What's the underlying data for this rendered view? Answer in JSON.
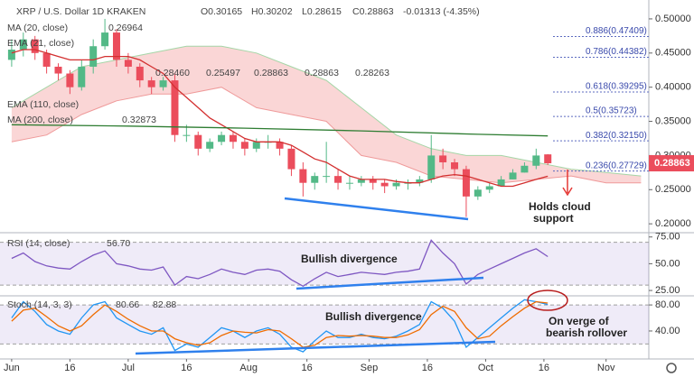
{
  "chart_data": [
    {
      "type": "candlestick",
      "title": "XRP / U.S. Dollar  1D  KRAKEN",
      "ohlc_labels": [
        "O0.30165",
        "H0.30202",
        "L0.28615",
        "C0.28863",
        "-0.01313 (-4.35%)"
      ],
      "xlim": [
        -3,
        164
      ],
      "ylim": [
        0.187,
        0.525
      ],
      "yticks": [
        {
          "value": 0.5,
          "label": "0.50000"
        },
        {
          "value": 0.45,
          "label": "0.45000"
        },
        {
          "value": 0.4,
          "label": "0.40000"
        },
        {
          "value": 0.35,
          "label": "0.35000"
        },
        {
          "value": 0.3,
          "label": "0.30000"
        },
        {
          "value": 0.25,
          "label": "0.25000"
        },
        {
          "value": 0.2,
          "label": "0.20000"
        }
      ],
      "x": [
        0,
        3,
        6,
        9,
        12,
        15,
        18,
        21,
        24,
        27,
        30,
        33,
        36,
        39,
        42,
        45,
        48,
        51,
        54,
        57,
        60,
        63,
        66,
        69,
        72,
        75,
        78,
        81,
        84,
        87,
        90,
        93,
        96,
        99,
        102,
        105,
        108,
        111,
        114,
        117,
        120,
        123,
        126,
        129,
        132,
        135,
        138
      ],
      "open": [
        0.44,
        0.455,
        0.47,
        0.45,
        0.43,
        0.42,
        0.4,
        0.43,
        0.46,
        0.48,
        0.44,
        0.43,
        0.41,
        0.4,
        0.41,
        0.33,
        0.33,
        0.31,
        0.32,
        0.33,
        0.32,
        0.31,
        0.32,
        0.32,
        0.31,
        0.28,
        0.26,
        0.27,
        0.27,
        0.26,
        0.26,
        0.265,
        0.26,
        0.255,
        0.26,
        0.26,
        0.265,
        0.3,
        0.29,
        0.28,
        0.24,
        0.25,
        0.255,
        0.265,
        0.275,
        0.285,
        0.30165
      ],
      "high": [
        0.47,
        0.48,
        0.475,
        0.455,
        0.435,
        0.425,
        0.44,
        0.47,
        0.5,
        0.485,
        0.45,
        0.435,
        0.415,
        0.415,
        0.42,
        0.345,
        0.335,
        0.325,
        0.335,
        0.335,
        0.325,
        0.325,
        0.33,
        0.325,
        0.315,
        0.29,
        0.275,
        0.32,
        0.28,
        0.27,
        0.27,
        0.27,
        0.265,
        0.265,
        0.265,
        0.27,
        0.33,
        0.31,
        0.295,
        0.285,
        0.255,
        0.26,
        0.27,
        0.28,
        0.29,
        0.31,
        0.30202
      ],
      "low": [
        0.43,
        0.445,
        0.44,
        0.42,
        0.41,
        0.39,
        0.395,
        0.42,
        0.455,
        0.43,
        0.42,
        0.4,
        0.39,
        0.395,
        0.32,
        0.32,
        0.3,
        0.305,
        0.315,
        0.31,
        0.3,
        0.305,
        0.31,
        0.3,
        0.27,
        0.24,
        0.25,
        0.26,
        0.25,
        0.25,
        0.255,
        0.25,
        0.245,
        0.25,
        0.25,
        0.255,
        0.26,
        0.28,
        0.27,
        0.21,
        0.235,
        0.245,
        0.255,
        0.265,
        0.275,
        0.28,
        0.28615
      ],
      "close": [
        0.455,
        0.47,
        0.45,
        0.43,
        0.42,
        0.4,
        0.43,
        0.46,
        0.48,
        0.44,
        0.43,
        0.41,
        0.4,
        0.41,
        0.33,
        0.33,
        0.31,
        0.32,
        0.33,
        0.32,
        0.31,
        0.32,
        0.32,
        0.31,
        0.28,
        0.26,
        0.27,
        0.27,
        0.26,
        0.26,
        0.265,
        0.26,
        0.255,
        0.26,
        0.26,
        0.265,
        0.3,
        0.29,
        0.28,
        0.24,
        0.25,
        0.255,
        0.265,
        0.275,
        0.285,
        0.3,
        0.28863
      ],
      "up_color": "#53b987",
      "down_color": "#eb4d5c",
      "last_price": {
        "value": 0.28863,
        "label": "0.28863"
      },
      "cloud": {
        "x": [
          0,
          9,
          18,
          27,
          36,
          45,
          54,
          63,
          72,
          81,
          90,
          99,
          108,
          117,
          126,
          135,
          144,
          153,
          162
        ],
        "top": [
          0.37,
          0.4,
          0.43,
          0.44,
          0.45,
          0.46,
          0.46,
          0.45,
          0.43,
          0.41,
          0.37,
          0.33,
          0.31,
          0.3,
          0.3,
          0.29,
          0.28,
          0.275,
          0.27
        ],
        "bottom": [
          0.32,
          0.33,
          0.36,
          0.38,
          0.39,
          0.39,
          0.4,
          0.37,
          0.36,
          0.35,
          0.3,
          0.29,
          0.27,
          0.265,
          0.26,
          0.265,
          0.27,
          0.26,
          0.26
        ],
        "color": "#f5b5b5",
        "labels": [
          "0.28460",
          "0.25497",
          "0.28863",
          "0.28863",
          "0.28263"
        ]
      },
      "series": [
        {
          "name": "MA (20, close)",
          "color": "#d32f2f",
          "last_label": "0.26964",
          "x": [
            0,
            3,
            6,
            9,
            12,
            15,
            18,
            21,
            24,
            27,
            30,
            33,
            36,
            39,
            42,
            45,
            48,
            51,
            54,
            57,
            60,
            63,
            66,
            69,
            72,
            75,
            78,
            81,
            84,
            87,
            90,
            93,
            96,
            99,
            102,
            105,
            108,
            111,
            114,
            117,
            120,
            123,
            126,
            129,
            132,
            135,
            138
          ],
          "values": [
            0.45,
            0.455,
            0.455,
            0.45,
            0.445,
            0.44,
            0.44,
            0.44,
            0.445,
            0.445,
            0.445,
            0.44,
            0.43,
            0.42,
            0.4,
            0.385,
            0.37,
            0.355,
            0.345,
            0.335,
            0.325,
            0.32,
            0.32,
            0.32,
            0.315,
            0.305,
            0.295,
            0.29,
            0.28,
            0.27,
            0.265,
            0.265,
            0.265,
            0.262,
            0.26,
            0.26,
            0.265,
            0.27,
            0.272,
            0.27,
            0.265,
            0.26,
            0.255,
            0.255,
            0.26,
            0.265,
            0.26964
          ]
        },
        {
          "name": "MA (200, close)",
          "color": "#2e7d32",
          "last_label": "0.32873",
          "x": [
            0,
            30,
            60,
            90,
            120,
            138
          ],
          "values": [
            0.345,
            0.343,
            0.34,
            0.336,
            0.331,
            0.32873
          ]
        }
      ],
      "legend_rows": [
        "EMA (21, close)",
        "EMA (110, close)"
      ],
      "fib": [
        {
          "value": 0.47409,
          "label": "0.886(0.47409)"
        },
        {
          "value": 0.44382,
          "label": "0.786(0.44382)"
        },
        {
          "value": 0.39295,
          "label": "0.618(0.39295)"
        },
        {
          "value": 0.35723,
          "label": "0.5(0.35723)"
        },
        {
          "value": 0.3215,
          "label": "0.382(0.32150)"
        },
        {
          "value": 0.27729,
          "label": "0.236(0.27729)"
        }
      ],
      "annotations": [
        "Holds cloud",
        "support"
      ]
    },
    {
      "type": "line",
      "title": "RSI (14, close)",
      "xlim": [
        -3,
        164
      ],
      "ylim": [
        20,
        79
      ],
      "yticks": [
        {
          "value": 75,
          "label": "75.00"
        },
        {
          "value": 50,
          "label": "50.00"
        },
        {
          "value": 25,
          "label": "25.00"
        }
      ],
      "band": [
        30,
        70
      ],
      "band_color": "#7e57c2",
      "x": [
        0,
        3,
        6,
        9,
        12,
        15,
        18,
        21,
        24,
        27,
        30,
        33,
        36,
        39,
        42,
        45,
        48,
        51,
        54,
        57,
        60,
        63,
        66,
        69,
        72,
        75,
        78,
        81,
        84,
        87,
        90,
        93,
        96,
        99,
        102,
        105,
        108,
        111,
        114,
        117,
        120,
        123,
        126,
        129,
        132,
        135,
        138
      ],
      "series": [
        {
          "color": "#7e57c2",
          "last_label": "56.70",
          "values": [
            55,
            60,
            52,
            48,
            46,
            45,
            52,
            58,
            62,
            50,
            48,
            45,
            44,
            47,
            30,
            38,
            36,
            40,
            45,
            42,
            40,
            44,
            45,
            43,
            35,
            29,
            36,
            42,
            38,
            40,
            42,
            41,
            40,
            42,
            43,
            45,
            72,
            60,
            50,
            31,
            40,
            45,
            50,
            55,
            60,
            64,
            56.7
          ]
        }
      ],
      "annotations": [
        "Bullish divergence"
      ]
    },
    {
      "type": "line",
      "title": "Stoch (14, 3, 3)",
      "xlim": [
        -3,
        164
      ],
      "ylim": [
        -3,
        94
      ],
      "yticks": [
        {
          "value": 80,
          "label": "80.00"
        },
        {
          "value": 40,
          "label": "40.00"
        }
      ],
      "band": [
        20,
        80
      ],
      "band_color": "#7e57c2",
      "x": [
        0,
        3,
        6,
        9,
        12,
        15,
        18,
        21,
        24,
        27,
        30,
        33,
        36,
        39,
        42,
        45,
        48,
        51,
        54,
        57,
        60,
        63,
        66,
        69,
        72,
        75,
        78,
        81,
        84,
        87,
        90,
        93,
        96,
        99,
        102,
        105,
        108,
        111,
        114,
        117,
        120,
        123,
        126,
        129,
        132,
        135,
        138
      ],
      "series": [
        {
          "color": "#2196f3",
          "last_label": "80.66",
          "values": [
            60,
            85,
            70,
            50,
            40,
            35,
            60,
            80,
            85,
            60,
            50,
            40,
            35,
            45,
            10,
            20,
            15,
            30,
            45,
            40,
            30,
            40,
            45,
            35,
            15,
            8,
            25,
            40,
            30,
            30,
            35,
            30,
            28,
            32,
            40,
            50,
            85,
            75,
            55,
            15,
            30,
            45,
            60,
            75,
            88,
            85,
            80.66
          ]
        },
        {
          "color": "#ef6c00",
          "last_label": "82.88",
          "values": [
            55,
            72,
            75,
            62,
            48,
            40,
            48,
            65,
            80,
            70,
            58,
            48,
            40,
            40,
            28,
            22,
            18,
            22,
            33,
            40,
            38,
            37,
            42,
            40,
            28,
            15,
            18,
            30,
            33,
            32,
            33,
            32,
            30,
            30,
            34,
            42,
            65,
            78,
            70,
            45,
            28,
            32,
            48,
            62,
            75,
            85,
            82.88
          ]
        }
      ],
      "xticks": [
        {
          "value": 0,
          "label": "Jun"
        },
        {
          "value": 15,
          "label": "16"
        },
        {
          "value": 30,
          "label": "Jul"
        },
        {
          "value": 45,
          "label": "16"
        },
        {
          "value": 61,
          "label": "Aug"
        },
        {
          "value": 76,
          "label": "16"
        },
        {
          "value": 92,
          "label": "Sep"
        },
        {
          "value": 107,
          "label": "16"
        },
        {
          "value": 122,
          "label": "Oct"
        },
        {
          "value": 137,
          "label": "16"
        },
        {
          "value": 153,
          "label": "Nov"
        }
      ],
      "annotations": [
        "Bullish divergence",
        "On verge of",
        "bearish rollover"
      ]
    }
  ]
}
